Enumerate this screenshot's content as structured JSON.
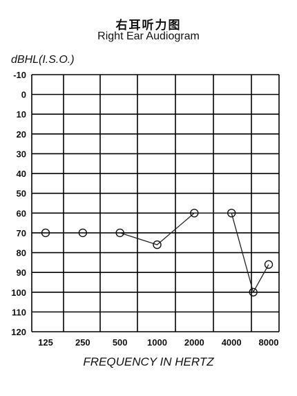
{
  "title_zh": "右耳听力图",
  "title_en": "Right Ear Audiogram",
  "chart_data": {
    "type": "line",
    "title": "Right Ear Audiogram",
    "ylabel": "dBHL(I.S.O.)",
    "xlabel": "FREQUENCY IN HERTZ",
    "x_tick_labels": [
      "125",
      "250",
      "500",
      "1000",
      "2000",
      "4000",
      "8000"
    ],
    "y_ticks": [
      -10,
      0,
      10,
      20,
      30,
      40,
      50,
      60,
      70,
      80,
      90,
      100,
      110,
      120
    ],
    "ylim": [
      -10,
      120
    ],
    "y_inverted": true,
    "grid": true,
    "x_scale": "log",
    "series": [
      {
        "x": [
          125,
          250,
          500,
          1000,
          2000,
          4000,
          6000,
          8000
        ],
        "y": [
          70,
          70,
          70,
          76,
          60,
          60,
          100,
          86
        ],
        "marker": "circle"
      }
    ]
  }
}
